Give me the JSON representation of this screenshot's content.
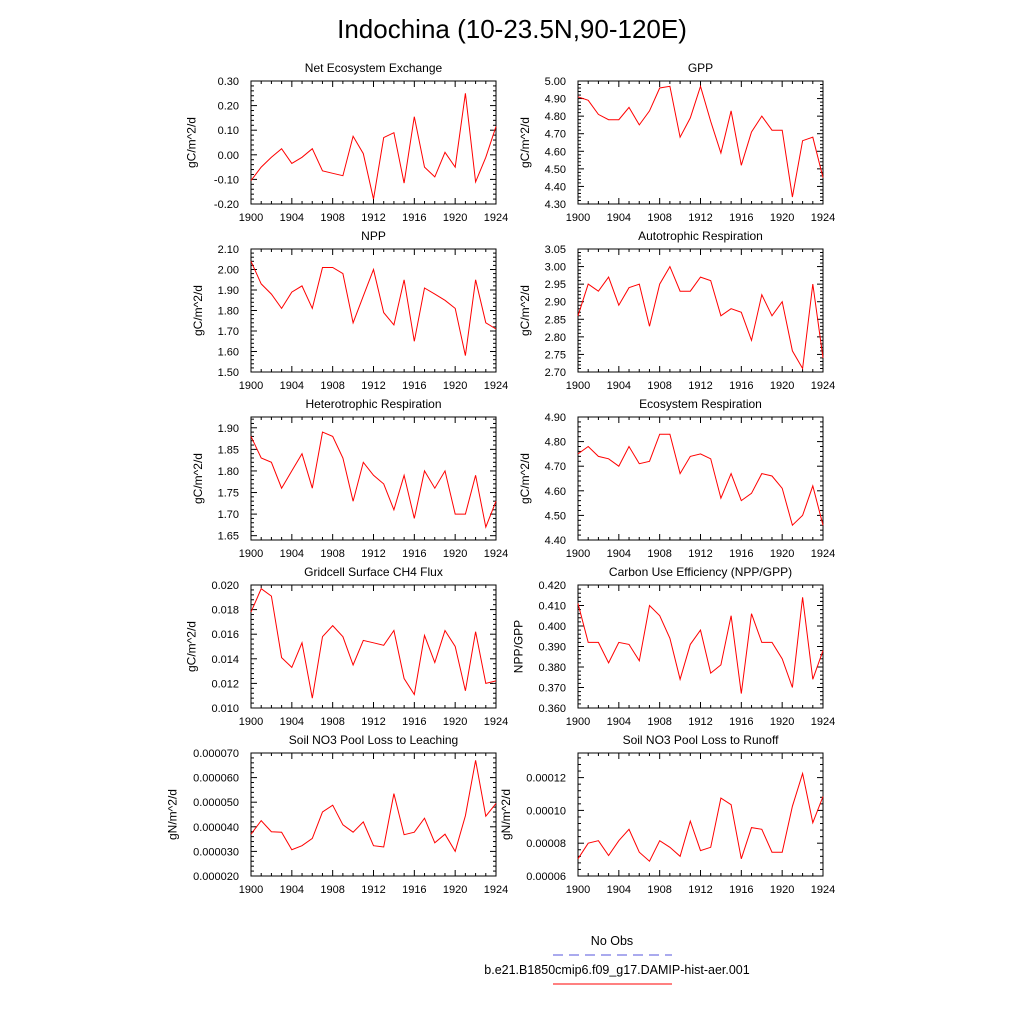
{
  "title": "Indochina (10-23.5N,90-120E)",
  "colors": {
    "model": "#ff0000",
    "obs": "#5555dd",
    "frame": "#000000"
  },
  "legend": [
    {
      "label": "No Obs",
      "color": "#5555dd",
      "style": "dashed"
    },
    {
      "label": "b.e21.B1850cmip6.f09_g17.DAMIP-hist-aer.001",
      "color": "#ff0000",
      "style": "solid"
    }
  ],
  "chart_data": [
    {
      "type": "line",
      "title": "Net Ecosystem Exchange",
      "ylabel": "gC/m^2/d",
      "xlabel": "",
      "xlim": [
        1900,
        1924
      ],
      "ylim": [
        -0.2,
        0.3
      ],
      "xticks": [
        "1900",
        "1904",
        "1908",
        "1912",
        "1916",
        "1920",
        "1924"
      ],
      "yticks": [
        "-0.20",
        "-0.10",
        "0.00",
        "0.10",
        "0.20",
        "0.30"
      ],
      "x": [
        1900,
        1901,
        1902,
        1903,
        1904,
        1905,
        1906,
        1907,
        1908,
        1909,
        1910,
        1911,
        1912,
        1913,
        1914,
        1915,
        1916,
        1917,
        1918,
        1919,
        1920,
        1921,
        1922,
        1923,
        1924
      ],
      "series": [
        {
          "values": [
            -0.105,
            -0.05,
            -0.01,
            0.025,
            -0.035,
            -0.01,
            0.025,
            -0.065,
            -0.075,
            -0.085,
            0.075,
            0.005,
            -0.18,
            0.07,
            0.09,
            -0.115,
            0.155,
            -0.05,
            -0.09,
            0.01,
            -0.05,
            0.25,
            -0.11,
            -0.01,
            0.115
          ]
        }
      ]
    },
    {
      "type": "line",
      "title": "GPP",
      "ylabel": "gC/m^2/d",
      "xlabel": "",
      "xlim": [
        1900,
        1924
      ],
      "ylim": [
        4.3,
        5.0
      ],
      "xticks": [
        "1900",
        "1904",
        "1908",
        "1912",
        "1916",
        "1920",
        "1924"
      ],
      "yticks": [
        "4.30",
        "4.40",
        "4.50",
        "4.60",
        "4.70",
        "4.80",
        "4.90",
        "5.00"
      ],
      "x": [
        1900,
        1901,
        1902,
        1903,
        1904,
        1905,
        1906,
        1907,
        1908,
        1909,
        1910,
        1911,
        1912,
        1913,
        1914,
        1915,
        1916,
        1917,
        1918,
        1919,
        1920,
        1921,
        1922,
        1923,
        1924
      ],
      "series": [
        {
          "values": [
            4.91,
            4.89,
            4.81,
            4.78,
            4.78,
            4.85,
            4.75,
            4.83,
            4.96,
            4.97,
            4.68,
            4.79,
            4.97,
            4.77,
            4.59,
            4.83,
            4.52,
            4.71,
            4.8,
            4.72,
            4.72,
            4.34,
            4.66,
            4.68,
            4.45
          ]
        }
      ]
    },
    {
      "type": "line",
      "title": "NPP",
      "ylabel": "gC/m^2/d",
      "xlabel": "",
      "xlim": [
        1900,
        1924
      ],
      "ylim": [
        1.5,
        2.1
      ],
      "xticks": [
        "1900",
        "1904",
        "1908",
        "1912",
        "1916",
        "1920",
        "1924"
      ],
      "yticks": [
        "1.50",
        "1.60",
        "1.70",
        "1.80",
        "1.90",
        "2.00",
        "2.10"
      ],
      "x": [
        1900,
        1901,
        1902,
        1903,
        1904,
        1905,
        1906,
        1907,
        1908,
        1909,
        1910,
        1911,
        1912,
        1913,
        1914,
        1915,
        1916,
        1917,
        1918,
        1919,
        1920,
        1921,
        1922,
        1923,
        1924
      ],
      "series": [
        {
          "values": [
            2.04,
            1.93,
            1.88,
            1.81,
            1.89,
            1.92,
            1.81,
            2.01,
            2.01,
            1.98,
            1.74,
            1.87,
            2.0,
            1.79,
            1.73,
            1.95,
            1.65,
            1.91,
            1.88,
            1.85,
            1.81,
            1.58,
            1.95,
            1.74,
            1.71
          ]
        }
      ]
    },
    {
      "type": "line",
      "title": "Autotrophic Respiration",
      "ylabel": "gC/m^2/d",
      "xlabel": "",
      "xlim": [
        1900,
        1924
      ],
      "ylim": [
        2.7,
        3.05
      ],
      "xticks": [
        "1900",
        "1904",
        "1908",
        "1912",
        "1916",
        "1920",
        "1924"
      ],
      "yticks": [
        "2.70",
        "2.75",
        "2.80",
        "2.85",
        "2.90",
        "2.95",
        "3.00",
        "3.05"
      ],
      "x": [
        1900,
        1901,
        1902,
        1903,
        1904,
        1905,
        1906,
        1907,
        1908,
        1909,
        1910,
        1911,
        1912,
        1913,
        1914,
        1915,
        1916,
        1917,
        1918,
        1919,
        1920,
        1921,
        1922,
        1923,
        1924
      ],
      "series": [
        {
          "values": [
            2.86,
            2.95,
            2.93,
            2.97,
            2.89,
            2.94,
            2.95,
            2.83,
            2.95,
            3.0,
            2.93,
            2.93,
            2.97,
            2.96,
            2.86,
            2.88,
            2.87,
            2.79,
            2.92,
            2.86,
            2.9,
            2.76,
            2.71,
            2.95,
            2.74
          ]
        }
      ]
    },
    {
      "type": "line",
      "title": "Heterotrophic Respiration",
      "ylabel": "gC/m^2/d",
      "xlabel": "",
      "xlim": [
        1900,
        1924
      ],
      "ylim": [
        1.64,
        1.925
      ],
      "xticks": [
        "1900",
        "1904",
        "1908",
        "1912",
        "1916",
        "1920",
        "1924"
      ],
      "yticks": [
        "1.65",
        "1.70",
        "1.75",
        "1.80",
        "1.85",
        "1.90"
      ],
      "x": [
        1900,
        1901,
        1902,
        1903,
        1904,
        1905,
        1906,
        1907,
        1908,
        1909,
        1910,
        1911,
        1912,
        1913,
        1914,
        1915,
        1916,
        1917,
        1918,
        1919,
        1920,
        1921,
        1922,
        1923,
        1924
      ],
      "series": [
        {
          "values": [
            1.88,
            1.83,
            1.82,
            1.76,
            1.8,
            1.84,
            1.76,
            1.89,
            1.88,
            1.83,
            1.73,
            1.82,
            1.79,
            1.77,
            1.71,
            1.79,
            1.69,
            1.8,
            1.76,
            1.8,
            1.7,
            1.7,
            1.79,
            1.67,
            1.73
          ]
        }
      ]
    },
    {
      "type": "line",
      "title": "Ecosystem Respiration",
      "ylabel": "gC/m^2/d",
      "xlabel": "",
      "xlim": [
        1900,
        1924
      ],
      "ylim": [
        4.4,
        4.9
      ],
      "xticks": [
        "1900",
        "1904",
        "1908",
        "1912",
        "1916",
        "1920",
        "1924"
      ],
      "yticks": [
        "4.40",
        "4.50",
        "4.60",
        "4.70",
        "4.80",
        "4.90"
      ],
      "x": [
        1900,
        1901,
        1902,
        1903,
        1904,
        1905,
        1906,
        1907,
        1908,
        1909,
        1910,
        1911,
        1912,
        1913,
        1914,
        1915,
        1916,
        1917,
        1918,
        1919,
        1920,
        1921,
        1922,
        1923,
        1924
      ],
      "series": [
        {
          "values": [
            4.75,
            4.78,
            4.74,
            4.73,
            4.7,
            4.78,
            4.71,
            4.72,
            4.83,
            4.83,
            4.67,
            4.74,
            4.75,
            4.73,
            4.57,
            4.67,
            4.56,
            4.59,
            4.67,
            4.66,
            4.61,
            4.46,
            4.5,
            4.62,
            4.46
          ]
        }
      ]
    },
    {
      "type": "line",
      "title": "Gridcell Surface CH4 Flux",
      "ylabel": "gC/m^2/d",
      "xlabel": "",
      "xlim": [
        1900,
        1924
      ],
      "ylim": [
        0.01,
        0.02
      ],
      "xticks": [
        "1900",
        "1904",
        "1908",
        "1912",
        "1916",
        "1920",
        "1924"
      ],
      "yticks": [
        "0.010",
        "0.012",
        "0.014",
        "0.016",
        "0.018",
        "0.020"
      ],
      "x": [
        1900,
        1901,
        1902,
        1903,
        1904,
        1905,
        1906,
        1907,
        1908,
        1909,
        1910,
        1911,
        1912,
        1913,
        1914,
        1915,
        1916,
        1917,
        1918,
        1919,
        1920,
        1921,
        1922,
        1923,
        1924
      ],
      "series": [
        {
          "values": [
            0.0178,
            0.0197,
            0.0191,
            0.0141,
            0.0133,
            0.0153,
            0.0108,
            0.0158,
            0.0167,
            0.0158,
            0.0135,
            0.0155,
            0.0153,
            0.0151,
            0.0163,
            0.0124,
            0.0111,
            0.0159,
            0.0137,
            0.0163,
            0.015,
            0.0114,
            0.0162,
            0.012,
            0.0122
          ]
        }
      ]
    },
    {
      "type": "line",
      "title": "Carbon Use Efficiency (NPP/GPP)",
      "ylabel": "NPP/GPP",
      "xlabel": "",
      "xlim": [
        1900,
        1924
      ],
      "ylim": [
        0.36,
        0.42
      ],
      "xticks": [
        "1900",
        "1904",
        "1908",
        "1912",
        "1916",
        "1920",
        "1924"
      ],
      "yticks": [
        "0.360",
        "0.370",
        "0.380",
        "0.390",
        "0.400",
        "0.410",
        "0.420"
      ],
      "x": [
        1900,
        1901,
        1902,
        1903,
        1904,
        1905,
        1906,
        1907,
        1908,
        1909,
        1910,
        1911,
        1912,
        1913,
        1914,
        1915,
        1916,
        1917,
        1918,
        1919,
        1920,
        1921,
        1922,
        1923,
        1924
      ],
      "series": [
        {
          "values": [
            0.411,
            0.392,
            0.392,
            0.382,
            0.392,
            0.391,
            0.383,
            0.41,
            0.405,
            0.394,
            0.374,
            0.391,
            0.398,
            0.377,
            0.381,
            0.405,
            0.367,
            0.406,
            0.392,
            0.392,
            0.384,
            0.37,
            0.414,
            0.374,
            0.388
          ]
        }
      ]
    },
    {
      "type": "line",
      "title": "Soil NO3 Pool Loss to Leaching",
      "ylabel": "gN/m^2/d",
      "xlabel": "",
      "xlim": [
        1900,
        1924
      ],
      "ylim": [
        2e-05,
        7e-05
      ],
      "xticks": [
        "1900",
        "1904",
        "1908",
        "1912",
        "1916",
        "1920",
        "1924"
      ],
      "yticks": [
        "0.000020",
        "0.000030",
        "0.000040",
        "0.000050",
        "0.000060",
        "0.000070"
      ],
      "x": [
        1900,
        1901,
        1902,
        1903,
        1904,
        1905,
        1906,
        1907,
        1908,
        1909,
        1910,
        1911,
        1912,
        1913,
        1914,
        1915,
        1916,
        1917,
        1918,
        1919,
        1920,
        1921,
        1922,
        1923,
        1924
      ],
      "series": [
        {
          "values": [
            3.7e-05,
            4.25e-05,
            3.8e-05,
            3.78e-05,
            3.07e-05,
            3.23e-05,
            3.53e-05,
            4.6e-05,
            4.88e-05,
            4.08e-05,
            3.78e-05,
            4.2e-05,
            3.23e-05,
            3.18e-05,
            5.35e-05,
            3.68e-05,
            3.78e-05,
            4.35e-05,
            3.35e-05,
            3.7e-05,
            3e-05,
            4.45e-05,
            6.7e-05,
            4.43e-05,
            4.95e-05
          ]
        }
      ]
    },
    {
      "type": "line",
      "title": "Soil NO3 Pool Loss to Runoff",
      "ylabel": "gN/m^2/d",
      "xlabel": "",
      "xlim": [
        1900,
        1924
      ],
      "ylim": [
        6e-05,
        0.000135
      ],
      "xticks": [
        "1900",
        "1904",
        "1908",
        "1912",
        "1916",
        "1920",
        "1924"
      ],
      "yticks": [
        "0.00006",
        "0.00008",
        "0.00010",
        "0.00012"
      ],
      "x": [
        1900,
        1901,
        1902,
        1903,
        1904,
        1905,
        1906,
        1907,
        1908,
        1909,
        1910,
        1911,
        1912,
        1913,
        1914,
        1915,
        1916,
        1917,
        1918,
        1919,
        1920,
        1921,
        1922,
        1923,
        1924
      ],
      "series": [
        {
          "values": [
            7.05e-05,
            8e-05,
            8.15e-05,
            7.25e-05,
            8.15e-05,
            8.85e-05,
            7.45e-05,
            6.9e-05,
            8.15e-05,
            7.75e-05,
            7.2e-05,
            9.35e-05,
            7.55e-05,
            7.75e-05,
            0.0001075,
            0.0001035,
            7.05e-05,
            8.95e-05,
            8.85e-05,
            7.45e-05,
            7.45e-05,
            0.0001025,
            0.0001225,
            9.25e-05,
            0.0001085
          ]
        }
      ]
    }
  ]
}
